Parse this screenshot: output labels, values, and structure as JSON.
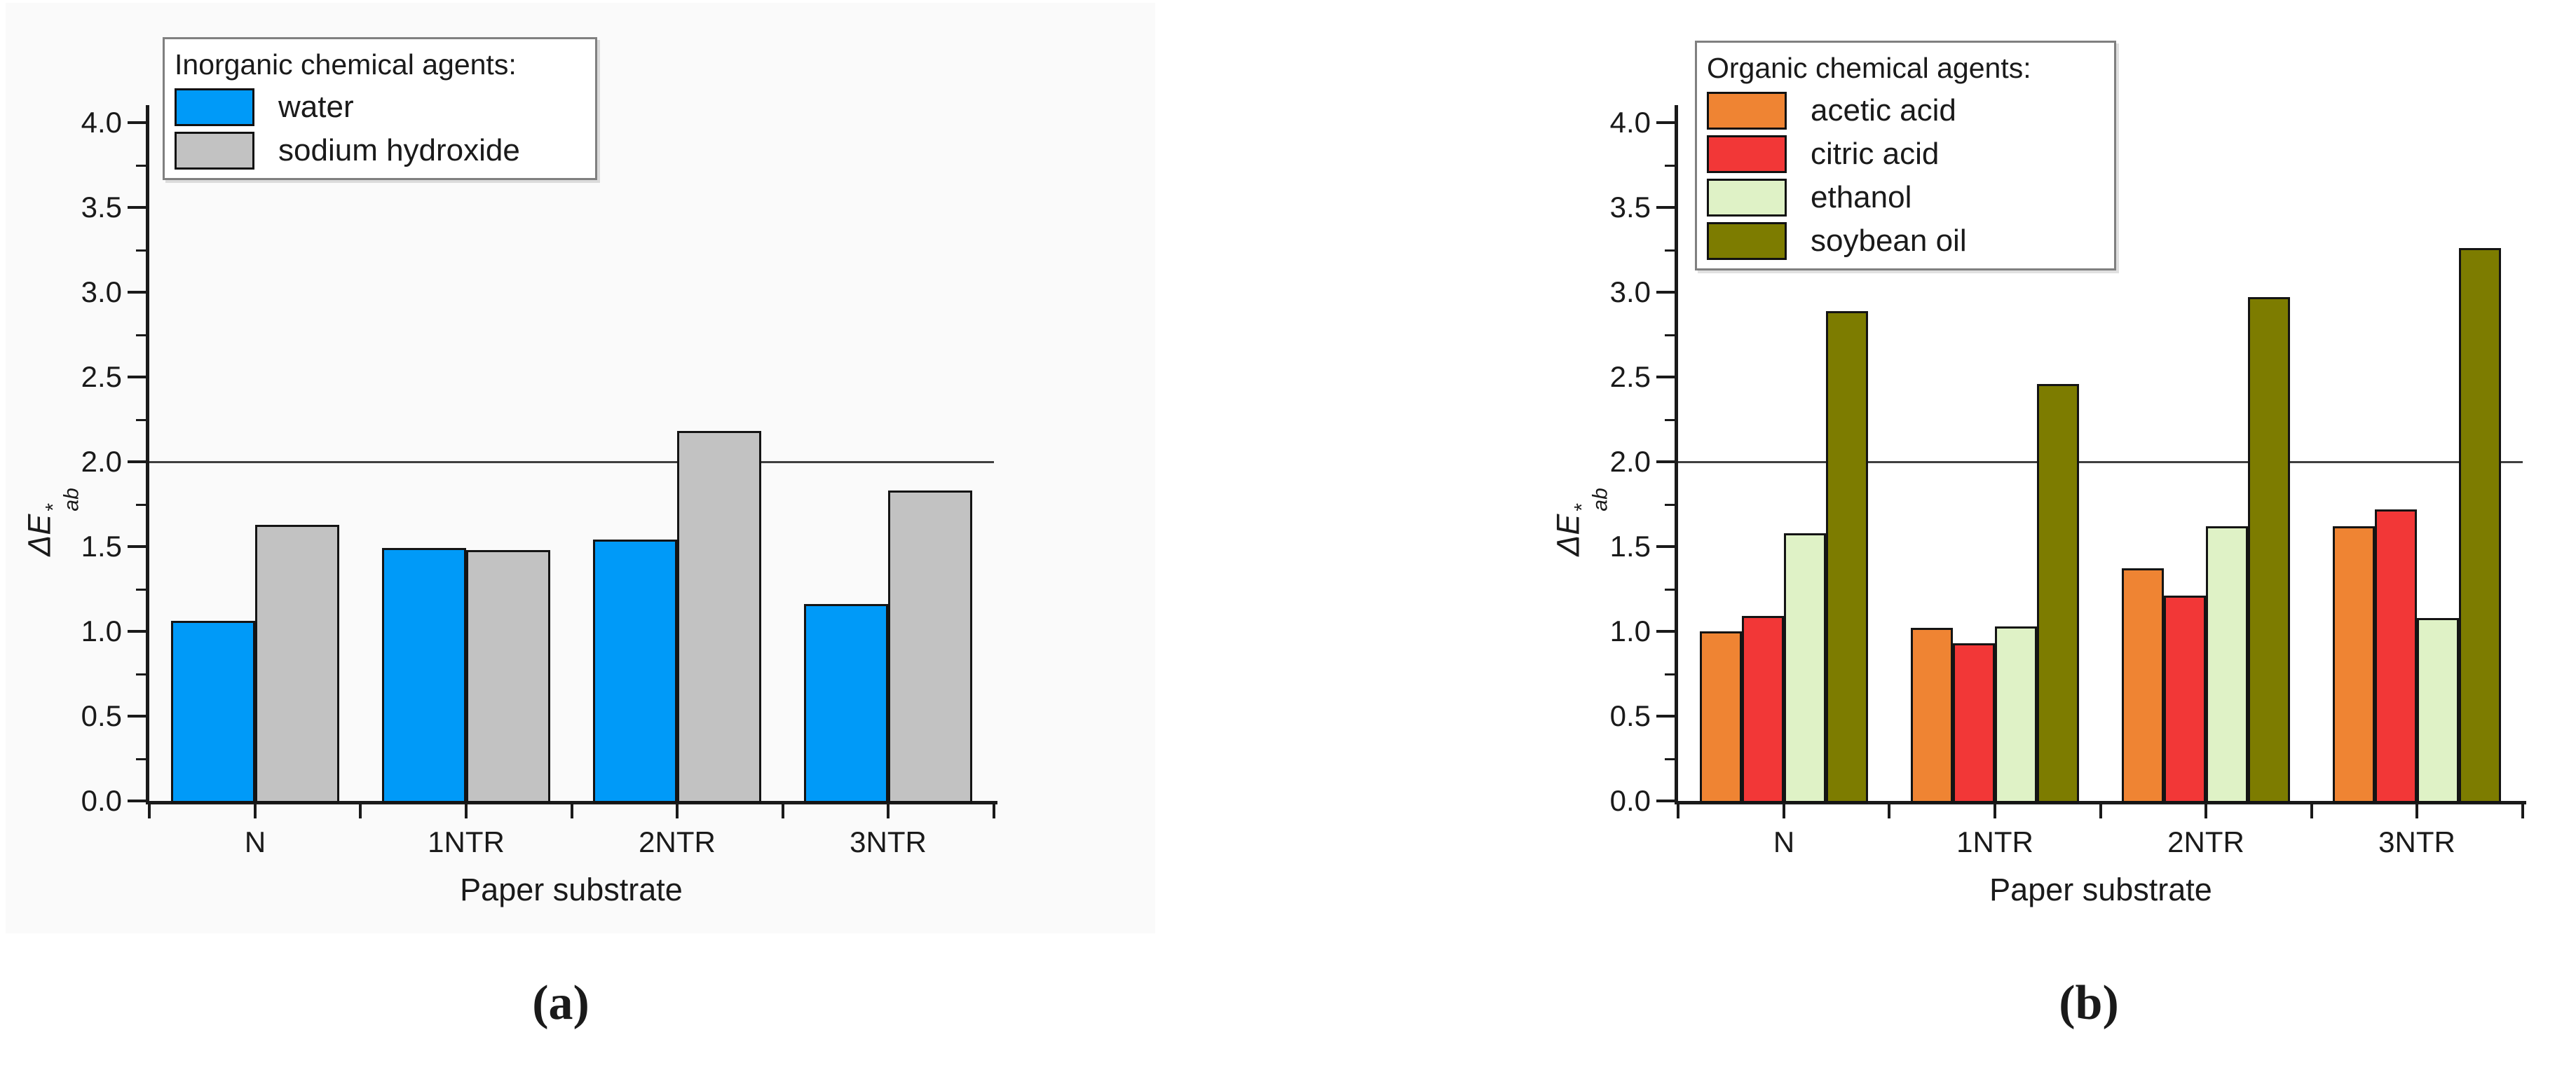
{
  "page": {
    "background": "#ffffff",
    "panel_a_background": "#fafafa"
  },
  "chart_data": [
    {
      "type": "bar",
      "panel": "a",
      "caption": "(a)",
      "legend_title": "Inorganic chemical agents:",
      "xlabel": "Paper substrate",
      "ylabel": {
        "prefix": "Δ",
        "letter": "E",
        "sub": "ab",
        "sup": "*"
      },
      "categories": [
        "N",
        "1NTR",
        "2NTR",
        "3NTR"
      ],
      "series": [
        {
          "name": "water",
          "color": "#009AF8",
          "values": [
            1.06,
            1.49,
            1.54,
            1.16
          ]
        },
        {
          "name": "sodium hydroxide",
          "color": "#C2C2C2",
          "values": [
            1.63,
            1.48,
            2.18,
            1.83
          ]
        }
      ],
      "ylim": [
        0.0,
        4.2
      ],
      "ytick_max": 4.0,
      "ytick_step": 0.5,
      "yminor_step": 0.25,
      "reference_line": 2.0,
      "grid": false,
      "legend_position": "top-left-inside",
      "axis_color": "#1a1a1a",
      "bar_border_color": "#141414",
      "reference_line_color": "#3f3f3f"
    },
    {
      "type": "bar",
      "panel": "b",
      "caption": "(b)",
      "legend_title": "Organic chemical agents:",
      "xlabel": "Paper substrate",
      "ylabel": {
        "prefix": "Δ",
        "letter": "E",
        "sub": "ab",
        "sup": "*"
      },
      "categories": [
        "N",
        "1NTR",
        "2NTR",
        "3NTR"
      ],
      "series": [
        {
          "name": "acetic acid",
          "color": "#EF8433",
          "values": [
            1.0,
            1.02,
            1.37,
            1.62
          ]
        },
        {
          "name": "citric acid",
          "color": "#F23737",
          "values": [
            1.09,
            0.93,
            1.21,
            1.72
          ]
        },
        {
          "name": "ethanol",
          "color": "#DFF2C6",
          "values": [
            1.58,
            1.03,
            1.62,
            1.08
          ]
        },
        {
          "name": "soybean oil",
          "color": "#7D7C00",
          "values": [
            2.89,
            2.46,
            2.97,
            3.26
          ]
        }
      ],
      "ylim": [
        0.0,
        4.2
      ],
      "ytick_max": 4.0,
      "ytick_step": 0.5,
      "yminor_step": 0.25,
      "reference_line": 2.0,
      "grid": false,
      "legend_position": "top-left-inside",
      "axis_color": "#1a1a1a",
      "bar_border_color": "#141414",
      "reference_line_color": "#3f3f3f"
    }
  ]
}
